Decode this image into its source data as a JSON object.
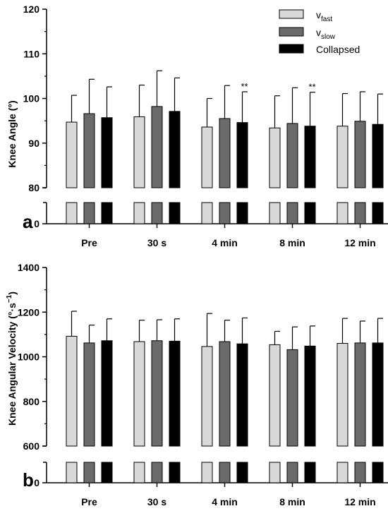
{
  "chart_data": [
    {
      "type": "bar",
      "panel_label": "a",
      "ylabel": "Knee Angle (°)",
      "ylim": [
        80,
        120
      ],
      "yticks": [
        "120",
        "110",
        "100",
        "90",
        "80"
      ],
      "ytick_values": [
        120,
        110,
        100,
        90,
        80
      ],
      "broken_axis_bottom_label": "0",
      "categories": [
        "Pre",
        "30 s",
        "4 min",
        "8 min",
        "12 min"
      ],
      "series": [
        {
          "name": "v_fast",
          "color": "#d9d9d9",
          "values": [
            94.7,
            95.9,
            93.6,
            93.4,
            93.8
          ],
          "error": [
            6.0,
            7.1,
            6.4,
            7.2,
            7.3
          ]
        },
        {
          "name": "v_slow",
          "color": "#6b6b6b",
          "values": [
            96.6,
            98.2,
            95.5,
            94.4,
            94.9
          ],
          "error": [
            7.7,
            8.0,
            7.4,
            8.0,
            6.6
          ]
        },
        {
          "name": "Collapsed",
          "color": "#000000",
          "values": [
            95.7,
            97.1,
            94.6,
            93.8,
            94.2
          ],
          "error": [
            6.9,
            7.5,
            6.9,
            7.6,
            6.8
          ]
        }
      ],
      "annotations": [
        {
          "category": "4 min",
          "series": "Collapsed",
          "text": "**"
        },
        {
          "category": "8 min",
          "series": "Collapsed",
          "text": "**"
        }
      ],
      "legend": {
        "placement": "top-right",
        "entries": [
          {
            "main": "v",
            "sub": "fast"
          },
          {
            "main": "v",
            "sub": "slow"
          },
          {
            "main": "Collapsed",
            "sub": ""
          }
        ]
      }
    },
    {
      "type": "bar",
      "panel_label": "b",
      "ylabel_main": "Knee Angular Velocity (°·s",
      "ylabel_sup": "−1",
      "ylabel_end": ")",
      "ylim": [
        600,
        1400
      ],
      "yticks": [
        "1400",
        "1200",
        "1000",
        "800",
        "600"
      ],
      "ytick_values": [
        1400,
        1200,
        1000,
        800,
        600
      ],
      "broken_axis_bottom_label": "0",
      "categories": [
        "Pre",
        "30 s",
        "4 min",
        "8 min",
        "12 min"
      ],
      "series": [
        {
          "name": "v_fast",
          "color": "#d9d9d9",
          "values": [
            1092,
            1068,
            1046,
            1054,
            1060
          ],
          "error": [
            112,
            96,
            148,
            60,
            112
          ]
        },
        {
          "name": "v_slow",
          "color": "#6b6b6b",
          "values": [
            1062,
            1072,
            1068,
            1032,
            1062
          ],
          "error": [
            80,
            94,
            96,
            102,
            98
          ]
        },
        {
          "name": "Collapsed",
          "color": "#000000",
          "values": [
            1072,
            1070,
            1058,
            1048,
            1062
          ],
          "error": [
            98,
            100,
            116,
            90,
            110
          ]
        }
      ]
    }
  ]
}
